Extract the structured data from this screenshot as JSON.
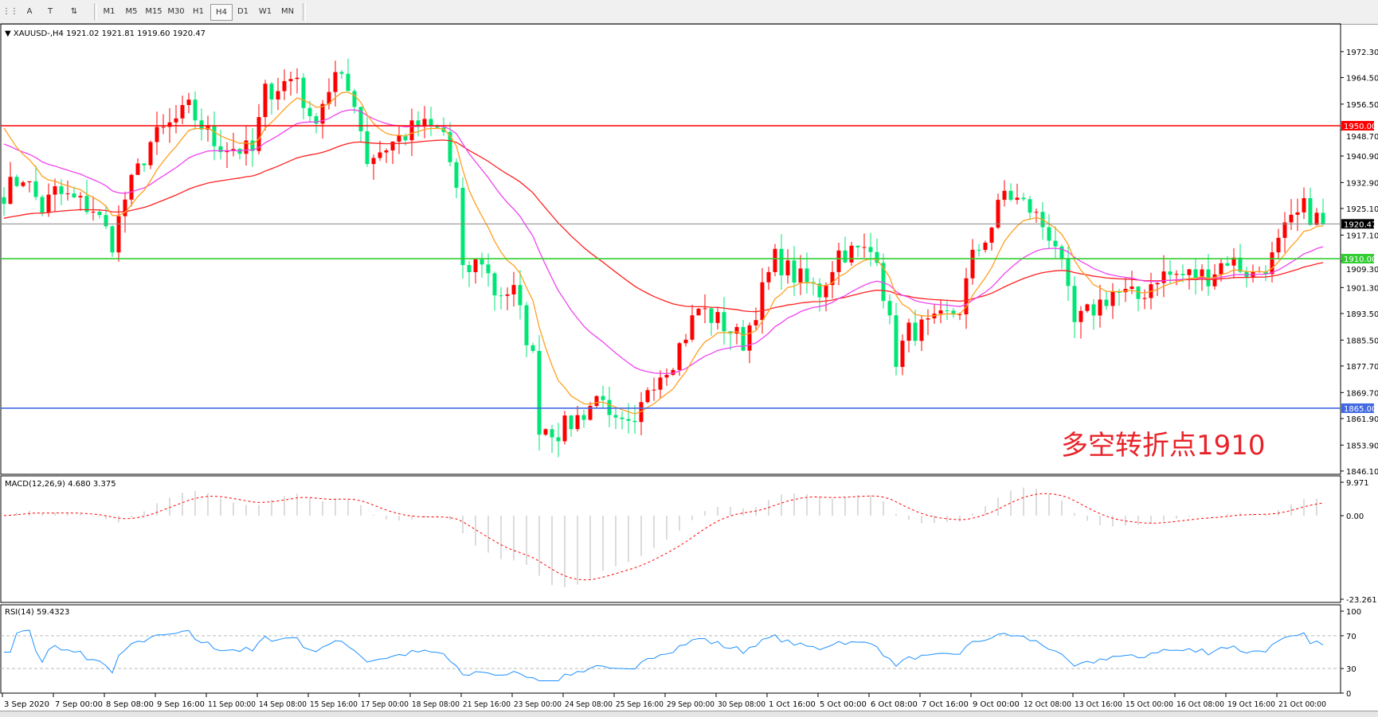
{
  "toolbar": {
    "tools": [
      {
        "name": "period-separator-icon",
        "glyph": "⋮⋮"
      },
      {
        "name": "text-tool-icon",
        "glyph": "A"
      },
      {
        "name": "text-label-tool-icon",
        "glyph": "T"
      },
      {
        "name": "arrows-tool-icon",
        "glyph": "⇅"
      }
    ],
    "timeframes": [
      "M1",
      "M5",
      "M15",
      "M30",
      "H1",
      "H4",
      "D1",
      "W1",
      "MN"
    ],
    "active_timeframe": "H4"
  },
  "chart": {
    "symbol_label": "XAUUSD-,H4",
    "ohlc": "1921.02 1921.81 1919.60 1920.47",
    "note": "多空转折点1910",
    "price_axis": [
      "1972.30",
      "1964.50",
      "1956.50",
      "1948.70",
      "1940.90",
      "1932.90",
      "1925.10",
      "1917.10",
      "1909.30",
      "1901.30",
      "1893.50",
      "1885.50",
      "1877.70",
      "1869.70",
      "1861.90",
      "1853.90",
      "1846.10"
    ],
    "levels": [
      {
        "price": 1950.0,
        "label": "1950.00",
        "color": "#ff0000"
      },
      {
        "price": 1910.0,
        "label": "1910.00",
        "color": "#32cd32"
      },
      {
        "price": 1865.0,
        "label": "1865.00",
        "color": "#4169e1"
      }
    ],
    "current_price": {
      "price": 1920.47,
      "label": "1920.47",
      "color": "#000000"
    },
    "colors": {
      "bull": "#ff0000",
      "bear": "#00e676",
      "ma_slow": "#ff2020",
      "ma_mid": "#ee44ee",
      "ma_fast": "#ffa020"
    },
    "time_axis": [
      "3 Sep 2020",
      "7 Sep 00:00",
      "8 Sep 08:00",
      "9 Sep 16:00",
      "11 Sep 00:00",
      "14 Sep 08:00",
      "15 Sep 16:00",
      "17 Sep 00:00",
      "18 Sep 08:00",
      "21 Sep 16:00",
      "23 Sep 00:00",
      "24 Sep 08:00",
      "25 Sep 16:00",
      "29 Sep 00:00",
      "30 Sep 08:00",
      "1 Oct 16:00",
      "5 Oct 00:00",
      "6 Oct 08:00",
      "7 Oct 16:00",
      "9 Oct 00:00",
      "12 Oct 08:00",
      "13 Oct 16:00",
      "15 Oct 00:00",
      "16 Oct 08:00",
      "19 Oct 16:00",
      "21 Oct 00:00"
    ]
  },
  "macd": {
    "label": "MACD(12,26,9) 4.680 3.375",
    "axis": [
      "9.971",
      "0.00",
      "-23.261"
    ],
    "ylim": [
      -23.261,
      9.971
    ]
  },
  "rsi": {
    "label": "RSI(14) 59.4323",
    "axis": [
      "100",
      "70",
      "30",
      "0"
    ],
    "levels": [
      70,
      30
    ],
    "color": "#1e90ff"
  },
  "chart_data": {
    "type": "candlestick",
    "timeframe": "H4",
    "ylim": [
      1846.1,
      1976
    ],
    "close_path_by_bar": [
      [
        0,
        1930
      ],
      [
        3,
        1935
      ],
      [
        6,
        1925
      ],
      [
        8,
        1930
      ],
      [
        14,
        1925
      ],
      [
        17,
        1915
      ],
      [
        19,
        1928
      ],
      [
        23,
        1945
      ],
      [
        29,
        1955
      ],
      [
        33,
        1945
      ],
      [
        39,
        1942
      ],
      [
        41,
        1960
      ],
      [
        46,
        1965
      ],
      [
        48,
        1950
      ],
      [
        52,
        1965
      ],
      [
        55,
        1958
      ],
      [
        57,
        1940
      ],
      [
        61,
        1945
      ],
      [
        65,
        1950
      ],
      [
        69,
        1948
      ],
      [
        71,
        1930
      ],
      [
        72,
        1905
      ],
      [
        75,
        1910
      ],
      [
        77,
        1900
      ],
      [
        80,
        1900
      ],
      [
        83,
        1880
      ],
      [
        84,
        1860
      ],
      [
        87,
        1858
      ],
      [
        90,
        1862
      ],
      [
        94,
        1870
      ],
      [
        95,
        1860
      ],
      [
        99,
        1858
      ],
      [
        101,
        1872
      ],
      [
        105,
        1880
      ],
      [
        109,
        1895
      ],
      [
        113,
        1890
      ],
      [
        116,
        1885
      ],
      [
        119,
        1900
      ],
      [
        121,
        1910
      ],
      [
        124,
        1905
      ],
      [
        128,
        1900
      ],
      [
        131,
        1912
      ],
      [
        137,
        1912
      ],
      [
        138,
        1900
      ],
      [
        140,
        1880
      ],
      [
        142,
        1888
      ],
      [
        146,
        1890
      ],
      [
        150,
        1895
      ],
      [
        152,
        1910
      ],
      [
        155,
        1920
      ],
      [
        157,
        1930
      ],
      [
        161,
        1925
      ],
      [
        165,
        1915
      ],
      [
        168,
        1890
      ],
      [
        171,
        1895
      ],
      [
        174,
        1900
      ],
      [
        178,
        1898
      ],
      [
        181,
        1905
      ],
      [
        185,
        1905
      ],
      [
        189,
        1905
      ],
      [
        192,
        1910
      ],
      [
        196,
        1905
      ],
      [
        199,
        1910
      ],
      [
        201,
        1918
      ],
      [
        204,
        1925
      ],
      [
        207,
        1920.47
      ]
    ]
  }
}
